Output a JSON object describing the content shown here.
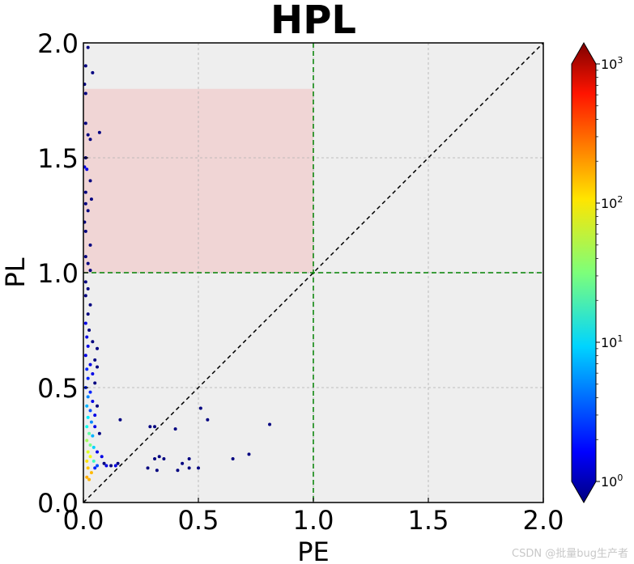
{
  "chart_data": {
    "type": "scatter",
    "title": "HPL",
    "xlabel": "PE",
    "ylabel": "PL",
    "xlim": [
      0,
      2
    ],
    "ylim": [
      0,
      2
    ],
    "xticks": [
      "0.0",
      "0.5",
      "1.0",
      "1.5",
      "2.0"
    ],
    "yticks": [
      "0.0",
      "0.5",
      "1.0",
      "1.5",
      "2.0"
    ],
    "grid": true,
    "background": "#eeeeee",
    "colormap": "jet",
    "colorbar": {
      "scale": "log",
      "range": [
        1,
        1000
      ],
      "tick_labels": [
        {
          "base": "10",
          "exp": "0"
        },
        {
          "base": "10",
          "exp": "1"
        },
        {
          "base": "10",
          "exp": "2"
        },
        {
          "base": "10",
          "exp": "3"
        }
      ]
    },
    "reference_lines": [
      {
        "kind": "diagonal",
        "style": "dashed",
        "color": "#000000"
      },
      {
        "kind": "vertical",
        "x": 1.0,
        "style": "dashed",
        "color": "#008000"
      },
      {
        "kind": "horizontal",
        "y": 1.0,
        "style": "dashed",
        "color": "#008000"
      }
    ],
    "shaded_region": {
      "x": [
        0,
        1.0
      ],
      "y": [
        1.0,
        1.8
      ],
      "color": "#f0d5d5"
    },
    "points": [
      {
        "x": 0.02,
        "y": 1.98,
        "c": 1
      },
      {
        "x": 0.01,
        "y": 1.9,
        "c": 1
      },
      {
        "x": 0.04,
        "y": 1.87,
        "c": 1
      },
      {
        "x": 0.005,
        "y": 1.82,
        "c": 1
      },
      {
        "x": 0.01,
        "y": 1.78,
        "c": 1
      },
      {
        "x": 0.01,
        "y": 1.65,
        "c": 1
      },
      {
        "x": 0.02,
        "y": 1.6,
        "c": 1
      },
      {
        "x": 0.07,
        "y": 1.61,
        "c": 1
      },
      {
        "x": 0.03,
        "y": 1.58,
        "c": 1
      },
      {
        "x": 0.01,
        "y": 1.5,
        "c": 1
      },
      {
        "x": 0.005,
        "y": 1.46,
        "c": 2
      },
      {
        "x": 0.015,
        "y": 1.45,
        "c": 2
      },
      {
        "x": 0.03,
        "y": 1.4,
        "c": 1
      },
      {
        "x": 0.01,
        "y": 1.35,
        "c": 1
      },
      {
        "x": 0.035,
        "y": 1.32,
        "c": 1
      },
      {
        "x": 0.01,
        "y": 1.3,
        "c": 1
      },
      {
        "x": 0.02,
        "y": 1.27,
        "c": 1
      },
      {
        "x": 0.005,
        "y": 1.22,
        "c": 1
      },
      {
        "x": 0.01,
        "y": 1.18,
        "c": 1
      },
      {
        "x": 0.03,
        "y": 1.12,
        "c": 1
      },
      {
        "x": 0.01,
        "y": 1.07,
        "c": 1
      },
      {
        "x": 0.02,
        "y": 1.04,
        "c": 1
      },
      {
        "x": 0.03,
        "y": 1.01,
        "c": 1
      },
      {
        "x": 0.01,
        "y": 0.96,
        "c": 1
      },
      {
        "x": 0.02,
        "y": 0.93,
        "c": 1
      },
      {
        "x": 0.01,
        "y": 0.9,
        "c": 1
      },
      {
        "x": 0.03,
        "y": 0.86,
        "c": 1
      },
      {
        "x": 0.02,
        "y": 0.82,
        "c": 1
      },
      {
        "x": 0.01,
        "y": 0.78,
        "c": 2
      },
      {
        "x": 0.025,
        "y": 0.75,
        "c": 1
      },
      {
        "x": 0.015,
        "y": 0.72,
        "c": 2
      },
      {
        "x": 0.04,
        "y": 0.7,
        "c": 1
      },
      {
        "x": 0.02,
        "y": 0.68,
        "c": 2
      },
      {
        "x": 0.06,
        "y": 0.67,
        "c": 1
      },
      {
        "x": 0.01,
        "y": 0.64,
        "c": 2
      },
      {
        "x": 0.05,
        "y": 0.62,
        "c": 1
      },
      {
        "x": 0.03,
        "y": 0.6,
        "c": 2
      },
      {
        "x": 0.015,
        "y": 0.58,
        "c": 3
      },
      {
        "x": 0.06,
        "y": 0.59,
        "c": 1
      },
      {
        "x": 0.04,
        "y": 0.56,
        "c": 2
      },
      {
        "x": 0.02,
        "y": 0.54,
        "c": 3
      },
      {
        "x": 0.05,
        "y": 0.52,
        "c": 1
      },
      {
        "x": 0.01,
        "y": 0.5,
        "c": 3
      },
      {
        "x": 0.03,
        "y": 0.48,
        "c": 3
      },
      {
        "x": 0.02,
        "y": 0.46,
        "c": 6
      },
      {
        "x": 0.04,
        "y": 0.44,
        "c": 2
      },
      {
        "x": 0.06,
        "y": 0.42,
        "c": 1
      },
      {
        "x": 0.015,
        "y": 0.42,
        "c": 8
      },
      {
        "x": 0.03,
        "y": 0.4,
        "c": 4
      },
      {
        "x": 0.05,
        "y": 0.38,
        "c": 2
      },
      {
        "x": 0.02,
        "y": 0.37,
        "c": 12
      },
      {
        "x": 0.035,
        "y": 0.35,
        "c": 6
      },
      {
        "x": 0.015,
        "y": 0.33,
        "c": 15
      },
      {
        "x": 0.05,
        "y": 0.33,
        "c": 2
      },
      {
        "x": 0.025,
        "y": 0.3,
        "c": 25
      },
      {
        "x": 0.04,
        "y": 0.29,
        "c": 8
      },
      {
        "x": 0.07,
        "y": 0.3,
        "c": 1
      },
      {
        "x": 0.015,
        "y": 0.27,
        "c": 40
      },
      {
        "x": 0.03,
        "y": 0.25,
        "c": 30
      },
      {
        "x": 0.045,
        "y": 0.24,
        "c": 10
      },
      {
        "x": 0.02,
        "y": 0.22,
        "c": 60
      },
      {
        "x": 0.06,
        "y": 0.22,
        "c": 2
      },
      {
        "x": 0.03,
        "y": 0.2,
        "c": 70
      },
      {
        "x": 0.015,
        "y": 0.18,
        "c": 90
      },
      {
        "x": 0.045,
        "y": 0.18,
        "c": 20
      },
      {
        "x": 0.02,
        "y": 0.15,
        "c": 110
      },
      {
        "x": 0.035,
        "y": 0.13,
        "c": 120
      },
      {
        "x": 0.015,
        "y": 0.11,
        "c": 130
      },
      {
        "x": 0.025,
        "y": 0.1,
        "c": 125
      },
      {
        "x": 0.06,
        "y": 0.16,
        "c": 4
      },
      {
        "x": 0.05,
        "y": 0.15,
        "c": 3
      },
      {
        "x": 0.08,
        "y": 0.2,
        "c": 2
      },
      {
        "x": 0.1,
        "y": 0.16,
        "c": 2
      },
      {
        "x": 0.12,
        "y": 0.16,
        "c": 1
      },
      {
        "x": 0.14,
        "y": 0.16,
        "c": 2
      },
      {
        "x": 0.15,
        "y": 0.17,
        "c": 1
      },
      {
        "x": 0.09,
        "y": 0.17,
        "c": 1
      },
      {
        "x": 0.16,
        "y": 0.36,
        "c": 1
      },
      {
        "x": 0.28,
        "y": 0.15,
        "c": 1
      },
      {
        "x": 0.29,
        "y": 0.33,
        "c": 1
      },
      {
        "x": 0.31,
        "y": 0.33,
        "c": 1
      },
      {
        "x": 0.31,
        "y": 0.19,
        "c": 1
      },
      {
        "x": 0.32,
        "y": 0.14,
        "c": 1
      },
      {
        "x": 0.33,
        "y": 0.2,
        "c": 1
      },
      {
        "x": 0.35,
        "y": 0.19,
        "c": 1
      },
      {
        "x": 0.4,
        "y": 0.32,
        "c": 1
      },
      {
        "x": 0.41,
        "y": 0.14,
        "c": 1
      },
      {
        "x": 0.43,
        "y": 0.17,
        "c": 1
      },
      {
        "x": 0.46,
        "y": 0.19,
        "c": 1
      },
      {
        "x": 0.46,
        "y": 0.15,
        "c": 1
      },
      {
        "x": 0.5,
        "y": 0.15,
        "c": 1
      },
      {
        "x": 0.51,
        "y": 0.41,
        "c": 1
      },
      {
        "x": 0.54,
        "y": 0.36,
        "c": 1
      },
      {
        "x": 0.65,
        "y": 0.19,
        "c": 1
      },
      {
        "x": 0.72,
        "y": 0.21,
        "c": 1
      },
      {
        "x": 0.81,
        "y": 0.34,
        "c": 1
      }
    ]
  },
  "watermark": "CSDN @批量bug生产者"
}
